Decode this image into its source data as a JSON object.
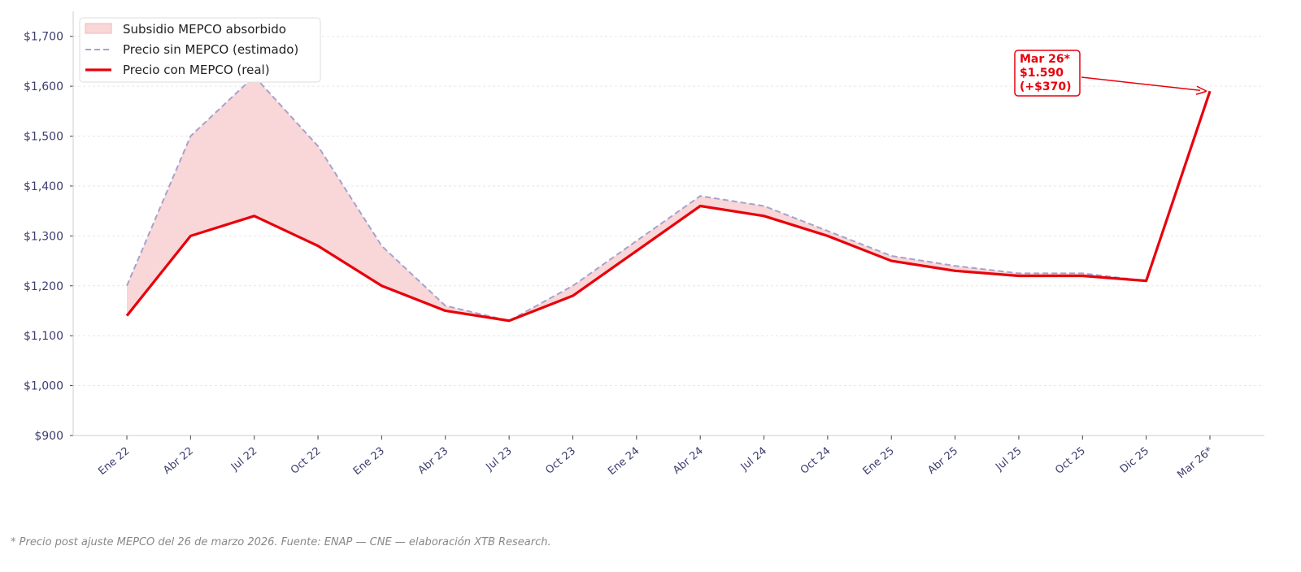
{
  "chart_data": {
    "type": "line",
    "title": "",
    "xlabel": "",
    "ylabel": "",
    "categories": [
      "Ene 22",
      "Abr 22",
      "Jul 22",
      "Oct 22",
      "Ene 23",
      "Abr 23",
      "Jul 23",
      "Oct 23",
      "Ene 24",
      "Abr 24",
      "Jul 24",
      "Oct 24",
      "Ene 25",
      "Abr 25",
      "Jul 25",
      "Oct 25",
      "Dic 25",
      "Mar 26*"
    ],
    "ylim": [
      900,
      1750
    ],
    "yticks": [
      900,
      1000,
      1100,
      1200,
      1300,
      1400,
      1500,
      1600,
      1700
    ],
    "ytick_labels": [
      "$900",
      "$1,000",
      "$1,100",
      "$1,200",
      "$1,300",
      "$1,400",
      "$1,500",
      "$1,600",
      "$1,700"
    ],
    "grid": true,
    "legend_position": "top-left",
    "series": [
      {
        "name": "Precio sin MEPCO (estimado)",
        "style": "dashed",
        "color": "#a5a3cc",
        "values": [
          1200,
          1500,
          1620,
          1480,
          1280,
          1160,
          1130,
          1200,
          1290,
          1380,
          1360,
          1310,
          1260,
          1240,
          1225,
          1225,
          1210,
          1590
        ]
      },
      {
        "name": "Precio con MEPCO (real)",
        "style": "solid",
        "color": "#e8000b",
        "values": [
          1140,
          1300,
          1340,
          1280,
          1200,
          1150,
          1130,
          1180,
          1270,
          1360,
          1340,
          1300,
          1250,
          1230,
          1220,
          1220,
          1210,
          1590
        ]
      }
    ],
    "fill": {
      "name": "Subsidio MEPCO absorbido",
      "color": "#f9d6d7",
      "between": [
        "Precio sin MEPCO (estimado)",
        "Precio con MEPCO (real)"
      ]
    },
    "annotation": {
      "lines": [
        "Mar 26*",
        "$1.590",
        "(+$370)"
      ],
      "target_category": "Mar 26*",
      "target_value": 1590,
      "color": "#e8000b"
    }
  },
  "footer": "* Precio post ajuste MEPCO del 26 de marzo 2026. Fuente: ENAP — CNE — elaboración XTB Research."
}
